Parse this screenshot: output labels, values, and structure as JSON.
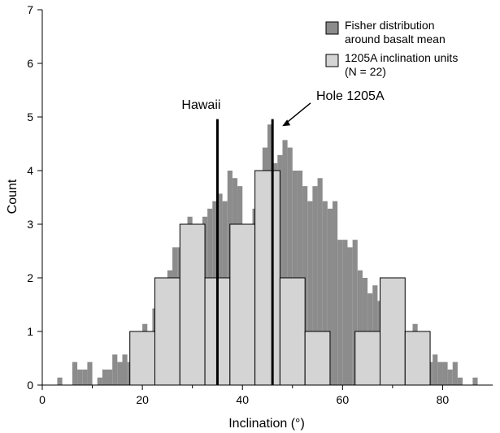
{
  "chart_data": {
    "type": "bar",
    "xlabel": "Inclination (°)",
    "ylabel": "Count",
    "xlim": [
      0,
      90
    ],
    "ylim": [
      0,
      7
    ],
    "x_ticks": [
      0,
      20,
      40,
      60,
      80
    ],
    "y_ticks": [
      0,
      1,
      2,
      3,
      4,
      5,
      6,
      7
    ],
    "grid": false,
    "legend_position": "top-right",
    "legend": [
      {
        "key": "fisher",
        "label_lines": [
          "Fisher distribution",
          "around basalt mean"
        ]
      },
      {
        "key": "units",
        "label_lines": [
          "1205A inclination units",
          "(N = 22)"
        ]
      }
    ],
    "series": [
      {
        "key": "fisher",
        "name": "Fisher distribution around basalt mean",
        "color": "#8c8c8c",
        "bin_width": 1,
        "bin_starts": [
          2,
          3,
          4,
          5,
          6,
          7,
          8,
          9,
          10,
          11,
          12,
          13,
          14,
          15,
          16,
          17,
          18,
          19,
          20,
          21,
          22,
          23,
          24,
          25,
          26,
          27,
          28,
          29,
          30,
          31,
          32,
          33,
          34,
          35,
          36,
          37,
          38,
          39,
          40,
          41,
          42,
          43,
          44,
          45,
          46,
          47,
          48,
          49,
          50,
          51,
          52,
          53,
          54,
          55,
          56,
          57,
          58,
          59,
          60,
          61,
          62,
          63,
          64,
          65,
          66,
          67,
          68,
          69,
          70,
          71,
          72,
          73,
          74,
          75,
          76,
          77,
          78,
          79,
          80,
          81,
          82,
          83,
          84,
          85,
          86,
          87,
          88
        ],
        "values": [
          0,
          0.14,
          0,
          0,
          0.43,
          0.29,
          0.29,
          0.43,
          0,
          0.14,
          0.29,
          0.29,
          0.57,
          0.43,
          0.57,
          0.43,
          1,
          1,
          1.14,
          1,
          1.43,
          1.71,
          1.86,
          2.14,
          2.57,
          2.57,
          3,
          3.14,
          3,
          3,
          3.14,
          3.29,
          3.43,
          3.57,
          3.43,
          4,
          3.86,
          3.71,
          3,
          3,
          3.29,
          3.57,
          4.43,
          4.86,
          4.14,
          4.29,
          4.57,
          4.43,
          4,
          4,
          3.71,
          3.43,
          3.71,
          3.86,
          3.43,
          3.29,
          3.43,
          2.71,
          2.71,
          2.57,
          2.71,
          2.14,
          2,
          1.71,
          1.86,
          1.57,
          1.43,
          1.29,
          1.14,
          1,
          0.86,
          0.71,
          1.14,
          1,
          0.86,
          0.43,
          0.57,
          0.43,
          0.43,
          0.29,
          0.43,
          0.14,
          0,
          0,
          0.14,
          0,
          0
        ]
      },
      {
        "key": "units",
        "name": "1205A inclination units",
        "color": "#d4d4d4",
        "bin_width": 5,
        "bin_starts": [
          17.5,
          22.5,
          27.5,
          32.5,
          37.5,
          42.5,
          47.5,
          52.5,
          57.5,
          62.5,
          67.5,
          72.5
        ],
        "values": [
          1,
          2,
          3,
          2,
          3,
          4,
          2,
          1,
          0,
          1,
          2,
          1
        ]
      }
    ],
    "reference_lines": [
      {
        "label": "Hawaii",
        "x": 35
      },
      {
        "label": "Hole 1205A",
        "x": 46
      }
    ]
  },
  "tick_labels_x": [
    "0",
    "20",
    "40",
    "60",
    "80"
  ],
  "tick_labels_y": [
    "0",
    "1",
    "2",
    "3",
    "4",
    "5",
    "6",
    "7"
  ]
}
